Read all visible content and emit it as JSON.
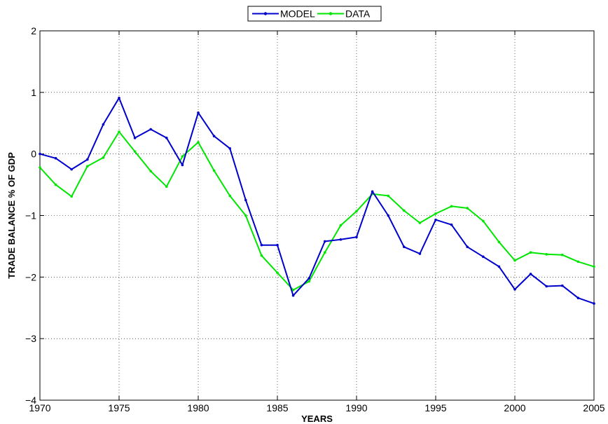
{
  "chart_data": {
    "type": "line",
    "xlabel": "YEARS",
    "ylabel": "TRADE BALANCE % OF GDP",
    "xlim": [
      1970,
      2005
    ],
    "ylim": [
      -4,
      2
    ],
    "xticks": [
      1970,
      1975,
      1980,
      1985,
      1990,
      1995,
      2000,
      2005
    ],
    "yticks": [
      -4,
      -3,
      -2,
      -1,
      0,
      1,
      2
    ],
    "ytick_labels": [
      "−4",
      "−3",
      "−2",
      "−1",
      "0",
      "1",
      "2"
    ],
    "grid": true,
    "legend_position": "top-center",
    "x": [
      1970,
      1971,
      1972,
      1973,
      1974,
      1975,
      1976,
      1977,
      1978,
      1979,
      1980,
      1981,
      1982,
      1983,
      1984,
      1985,
      1986,
      1987,
      1988,
      1989,
      1990,
      1991,
      1992,
      1993,
      1994,
      1995,
      1996,
      1997,
      1998,
      1999,
      2000,
      2001,
      2002,
      2003,
      2004,
      2005
    ],
    "series": [
      {
        "name": "MODEL",
        "color": "#0000cc",
        "marker": "dot",
        "values": [
          0.0,
          -0.07,
          -0.25,
          -0.09,
          0.48,
          0.91,
          0.26,
          0.4,
          0.26,
          -0.18,
          0.67,
          0.29,
          0.09,
          -0.75,
          -1.48,
          -1.48,
          -2.3,
          -2.02,
          -1.42,
          -1.39,
          -1.35,
          -0.61,
          -1.0,
          -1.51,
          -1.62,
          -1.07,
          -1.15,
          -1.51,
          -1.67,
          -1.83,
          -2.2,
          -1.95,
          -2.15,
          -2.14,
          -2.34,
          -2.43
        ]
      },
      {
        "name": "DATA",
        "color": "#00e600",
        "marker": "dot",
        "values": [
          -0.22,
          -0.5,
          -0.69,
          -0.2,
          -0.06,
          0.36,
          0.04,
          -0.28,
          -0.53,
          -0.04,
          0.19,
          -0.27,
          -0.68,
          -1.0,
          -1.65,
          -1.93,
          -2.21,
          -2.07,
          -1.6,
          -1.16,
          -0.93,
          -0.65,
          -0.68,
          -0.92,
          -1.12,
          -0.97,
          -0.85,
          -0.88,
          -1.09,
          -1.43,
          -1.73,
          -1.6,
          -1.63,
          -1.64,
          -1.75,
          -1.83
        ]
      }
    ]
  }
}
